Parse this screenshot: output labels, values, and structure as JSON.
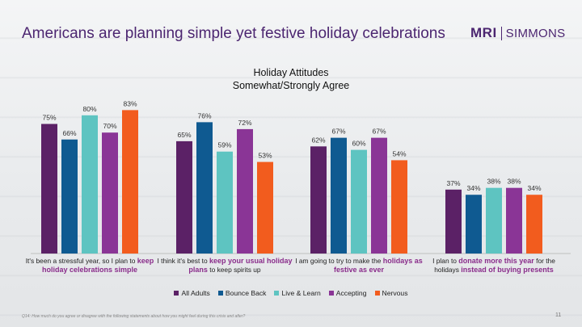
{
  "header": {
    "title": "Americans are planning simple yet festive holiday celebrations",
    "logo_left": "MRI",
    "logo_right": "SIMMONS"
  },
  "chart_data": {
    "type": "bar",
    "title": "Holiday Attitudes",
    "subtitle": "Somewhat/Strongly Agree",
    "ylim": [
      0,
      100
    ],
    "grid": false,
    "legend_position": "bottom",
    "categories": [
      {
        "pre": "It's been a stressful year, so I plan to ",
        "bold": "keep holiday celebrations simple",
        "post": ""
      },
      {
        "pre": "I think it's best to ",
        "bold": "keep your usual holiday plans",
        "post": " to keep spirits up"
      },
      {
        "pre": "I am going to try to make the ",
        "bold": "holidays as festive as ever",
        "post": ""
      },
      {
        "pre": "I plan to ",
        "bold": "donate more this year",
        "post": " for the holidays ",
        "bold2": "instead of buying presents"
      }
    ],
    "series": [
      {
        "name": "All Adults",
        "color": "#5b2166",
        "values": [
          75,
          65,
          62,
          37
        ]
      },
      {
        "name": "Bounce Back",
        "color": "#0f5a91",
        "values": [
          66,
          76,
          67,
          34
        ]
      },
      {
        "name": "Live & Learn",
        "color": "#5ec4c1",
        "values": [
          80,
          59,
          60,
          38
        ]
      },
      {
        "name": "Accepting",
        "color": "#8a3596",
        "values": [
          70,
          72,
          67,
          38
        ]
      },
      {
        "name": "Nervous",
        "color": "#f25c1e",
        "values": [
          83,
          53,
          54,
          34
        ]
      }
    ],
    "value_suffix": "%"
  },
  "footer": {
    "footnote": "Q14: How much do you agree or disagree with the following statements about how you might feel during this crisis and after?",
    "page_number": "11"
  }
}
